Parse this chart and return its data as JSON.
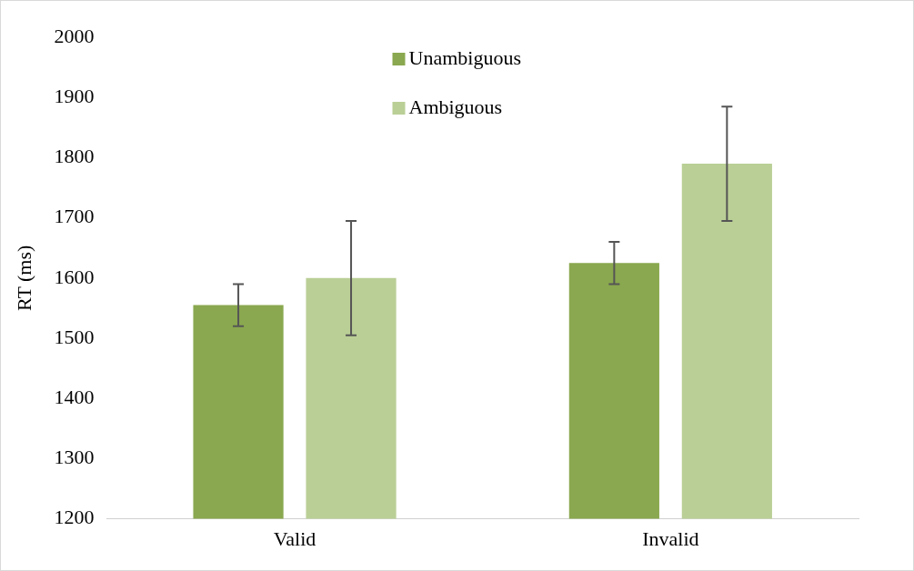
{
  "chart_data": {
    "type": "bar",
    "ylabel": "RT (ms)",
    "categories": [
      "Valid",
      "Invalid"
    ],
    "series": [
      {
        "name": "Unambiguous",
        "color": "#8aa84f",
        "values": [
          1555,
          1625
        ],
        "errors": [
          35,
          35
        ]
      },
      {
        "name": "Ambiguous",
        "color": "#bacf96",
        "values": [
          1600,
          1790
        ],
        "errors": [
          95,
          95
        ]
      }
    ],
    "ylim": [
      1200,
      2000
    ],
    "yticks": [
      1200,
      1300,
      1400,
      1500,
      1600,
      1700,
      1800,
      1900,
      2000
    ],
    "grid": false,
    "legend": "top"
  }
}
